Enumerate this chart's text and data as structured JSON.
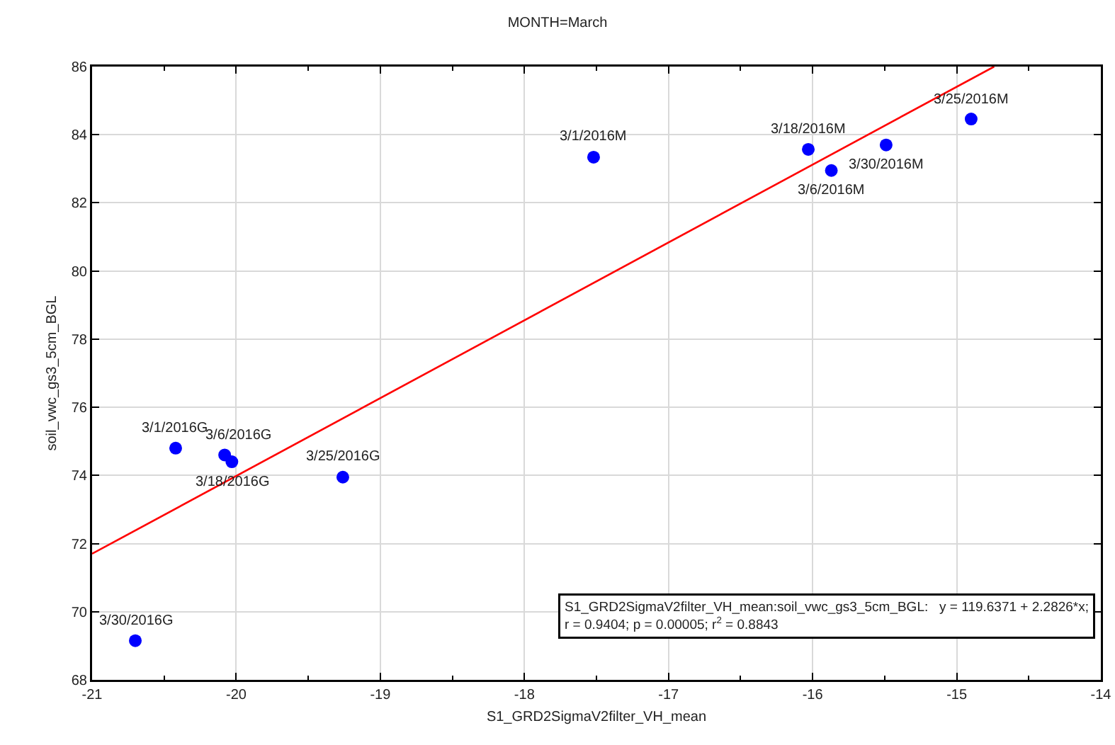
{
  "chart_data": {
    "type": "scatter",
    "title": "MONTH=March",
    "xlabel": "S1_GRD2SigmaV2filter_VH_mean",
    "ylabel": "soil_vwc_gs3_5cm_BGL",
    "x": [
      -20.42,
      -20.08,
      -20.03,
      -19.26,
      -20.7,
      -17.52,
      -16.03,
      -15.87,
      -15.49,
      -14.9
    ],
    "series": [
      {
        "color": "#0000ff",
        "values": [
          74.8,
          74.6,
          74.4,
          73.95,
          69.15,
          83.34,
          83.57,
          82.95,
          83.7,
          84.46
        ]
      },
      {
        "type": "line",
        "color": "#ff0000",
        "x": [
          -21,
          -14.74
        ],
        "values": [
          71.7,
          86.0
        ],
        "marker": "none"
      }
    ],
    "marker": "circle",
    "grid": true,
    "xlim": [
      -21,
      -14
    ],
    "xticks": [
      -21,
      -20,
      -19,
      -18,
      -17,
      -16,
      -15,
      -14
    ],
    "ylim": [
      68,
      86
    ],
    "yticks": [
      68,
      70,
      72,
      74,
      76,
      78,
      80,
      82,
      84,
      86
    ],
    "annotations": [
      {
        "text": "3/1/2016G",
        "x": -20.42,
        "y": 74.8
      },
      {
        "text": "3/6/2016G",
        "x": -20.08,
        "y": 74.6
      },
      {
        "text": "3/18/2016G",
        "x": -20.03,
        "y": 74.4
      },
      {
        "text": "3/25/2016G",
        "x": -19.26,
        "y": 73.95
      },
      {
        "text": "3/30/2016G",
        "x": -20.7,
        "y": 69.15
      },
      {
        "text": "3/1/2016M",
        "x": -17.52,
        "y": 83.34
      },
      {
        "text": "3/18/2016M",
        "x": -16.03,
        "y": 83.57
      },
      {
        "text": "3/6/2016M",
        "x": -15.87,
        "y": 82.95
      },
      {
        "text": "3/30/2016M",
        "x": -15.49,
        "y": 83.7
      },
      {
        "text": "3/25/2016M",
        "x": -14.9,
        "y": 84.46
      },
      "S1_GRD2SigmaV2filter_VH_mean:soil_vwc_gs3_5cm_BGL:   y = 119.6371 + 2.2826*x;\nr = 0.9404; p = 0.00005; r$^{2}$ = 0.8843"
    ]
  }
}
